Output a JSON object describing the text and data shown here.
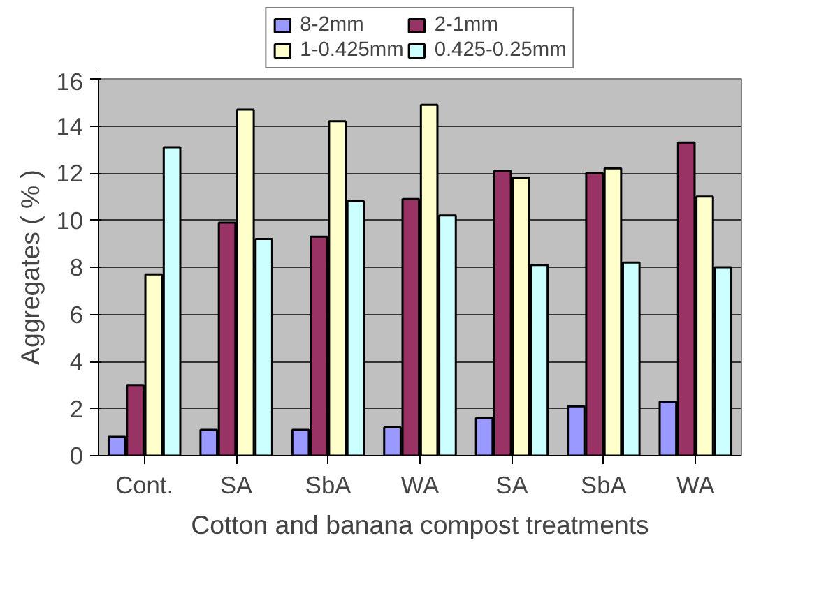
{
  "chart_data": {
    "type": "bar",
    "xlabel": "Cotton and banana compost treatments",
    "ylabel": "Aggregates ( % )",
    "categories": [
      "Cont.",
      "SA",
      "SbA",
      "WA",
      "SA",
      "SbA",
      "WA"
    ],
    "series": [
      {
        "name": "8-2mm",
        "color": "#9999ff",
        "values": [
          0.8,
          1.1,
          1.1,
          1.2,
          1.6,
          2.1,
          2.3
        ]
      },
      {
        "name": "2-1mm",
        "color": "#993366",
        "values": [
          3.0,
          9.9,
          9.3,
          10.9,
          12.1,
          12.0,
          13.3
        ]
      },
      {
        "name": "1-0.425mm",
        "color": "#ffffcc",
        "values": [
          7.7,
          14.7,
          14.2,
          14.9,
          11.8,
          12.2,
          11.0
        ]
      },
      {
        "name": "0.425-0.25mm",
        "color": "#ccffff",
        "values": [
          13.1,
          9.2,
          10.8,
          10.2,
          8.1,
          8.2,
          8.0
        ]
      }
    ],
    "ylim": [
      0,
      16
    ],
    "yticks": [
      0,
      2,
      4,
      6,
      8,
      10,
      12,
      14,
      16
    ],
    "grid": "y",
    "legend": "top"
  }
}
